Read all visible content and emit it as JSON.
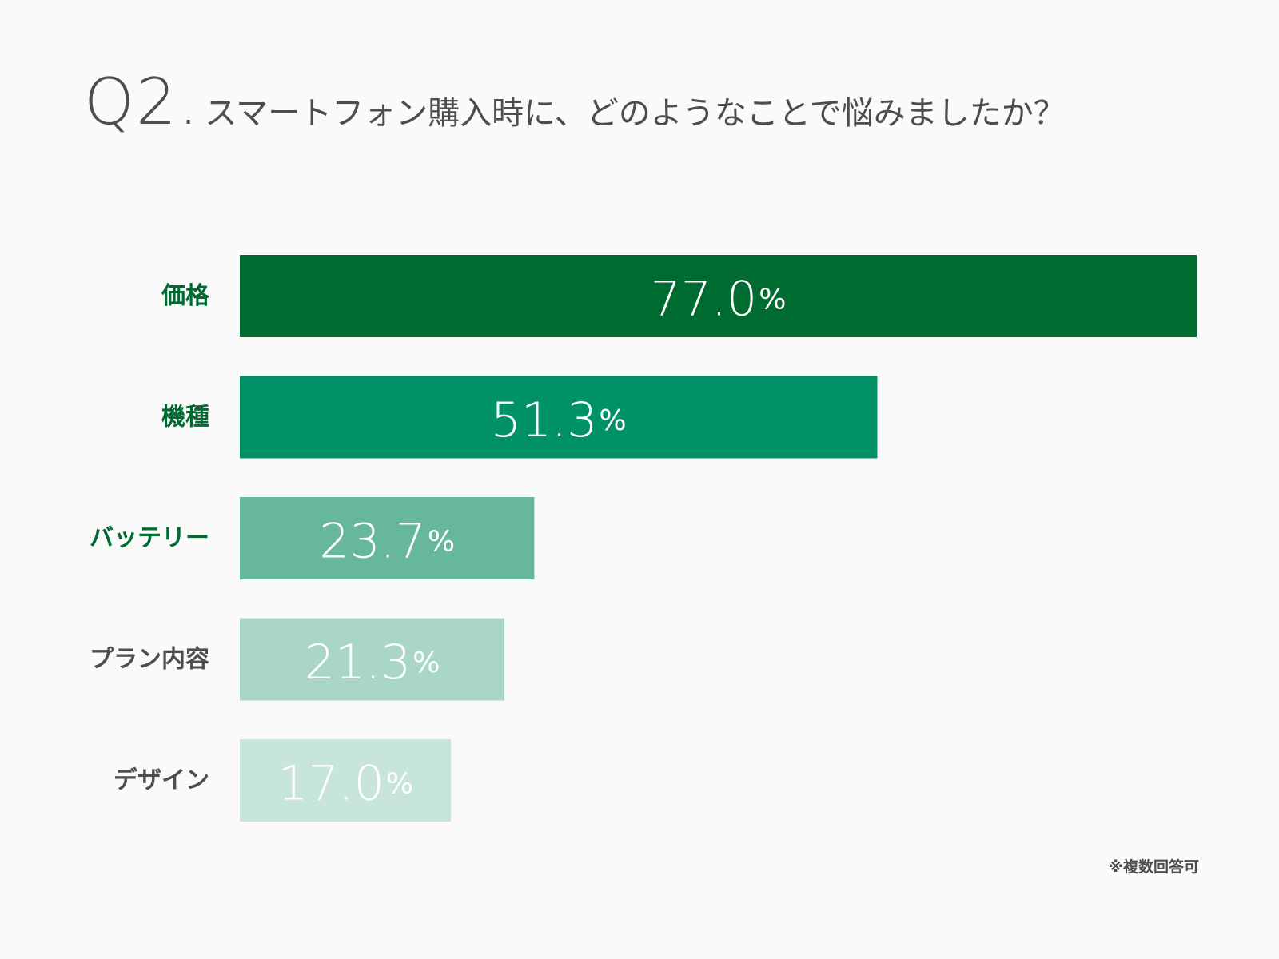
{
  "title": {
    "number": "Q2.",
    "question": "スマートフォン購入時に、どのようなことで悩みましたか？"
  },
  "chart_data": {
    "type": "bar",
    "orientation": "horizontal",
    "title": "Q2.スマートフォン購入時に、どのようなことで悩みましたか？",
    "categories": [
      "価格",
      "機種",
      "バッテリー",
      "プラン内容",
      "デザイン"
    ],
    "values": [
      77.0,
      51.3,
      23.7,
      21.3,
      17.0
    ],
    "value_labels": [
      "77.0",
      "51.3",
      "23.7",
      "21.3",
      "17.0"
    ],
    "unit": "%",
    "xlim": [
      0,
      77.0
    ],
    "grid": false,
    "legend": "none",
    "bar_colors": [
      "#006b30",
      "#009166",
      "#66b79c",
      "#a9d6c6",
      "#c8e5d9"
    ],
    "label_colors": [
      "#006b30",
      "#006b30",
      "#006b30",
      "#4d4d4d",
      "#4d4d4d"
    ],
    "value_text_color": "#ffffff"
  },
  "footnote": "※複数回答可"
}
